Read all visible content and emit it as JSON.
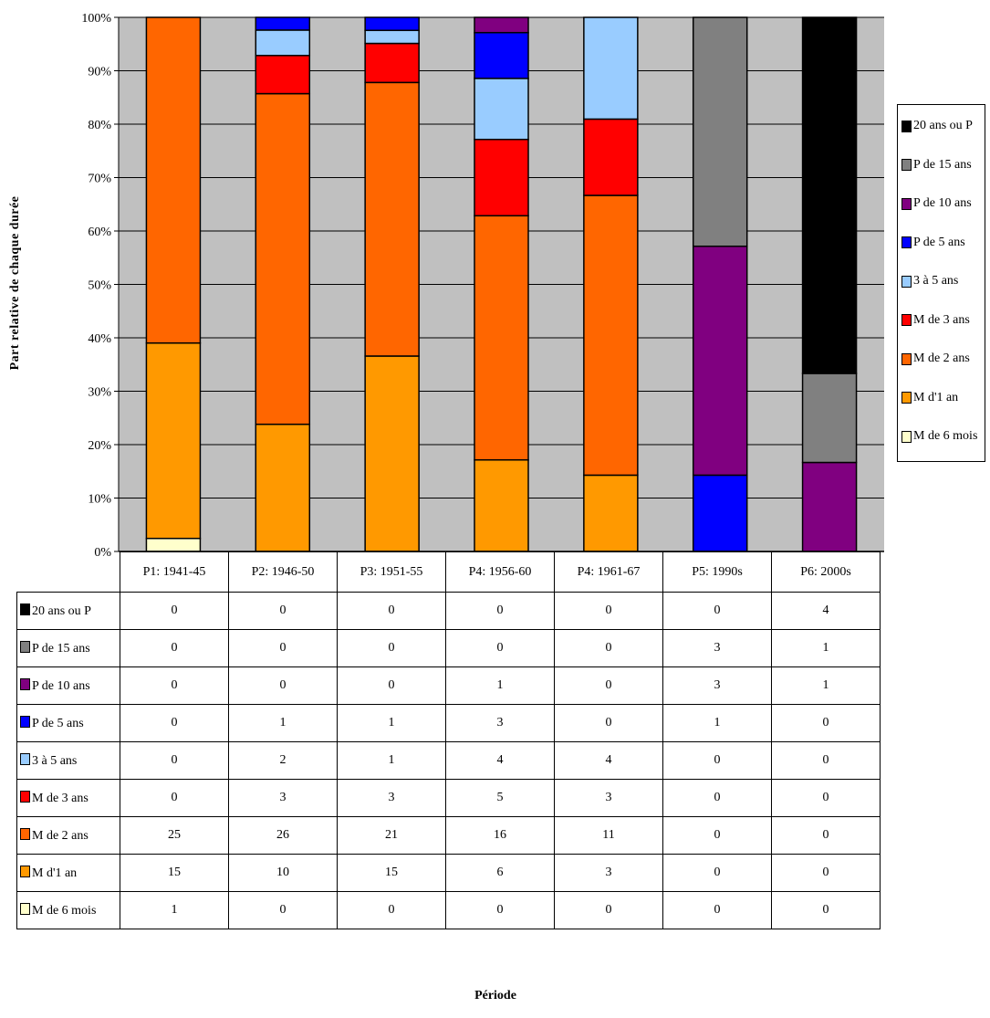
{
  "chart_data": {
    "type": "bar",
    "stacked": true,
    "normalized": true,
    "title": "",
    "xlabel": "Période",
    "ylabel": "Part relative de chaque durée",
    "ylim": [
      0,
      100
    ],
    "yticks": [
      "0%",
      "10%",
      "20%",
      "30%",
      "40%",
      "50%",
      "60%",
      "70%",
      "80%",
      "90%",
      "100%"
    ],
    "grid": true,
    "legend_position": "right",
    "categories": [
      "P1: 1941-45",
      "P2: 1946-50",
      "P3: 1951-55",
      "P4: 1956-60",
      "P4: 1961-67",
      "P5: 1990s",
      "P6: 2000s"
    ],
    "series": [
      {
        "name": "M de 6 mois",
        "color": "#ffffcc",
        "values": [
          1,
          0,
          0,
          0,
          0,
          0,
          0
        ]
      },
      {
        "name": "M d'1 an",
        "color": "#ff9900",
        "values": [
          15,
          10,
          15,
          6,
          3,
          0,
          0
        ]
      },
      {
        "name": "M de 2 ans",
        "color": "#ff6600",
        "values": [
          25,
          26,
          21,
          16,
          11,
          0,
          0
        ]
      },
      {
        "name": "M de 3 ans",
        "color": "#ff0000",
        "values": [
          0,
          3,
          3,
          5,
          3,
          0,
          0
        ]
      },
      {
        "name": "3 à 5 ans",
        "color": "#99ccff",
        "values": [
          0,
          2,
          1,
          4,
          4,
          0,
          0
        ]
      },
      {
        "name": "P de 5 ans",
        "color": "#0000ff",
        "values": [
          0,
          1,
          1,
          3,
          0,
          1,
          0
        ]
      },
      {
        "name": "P de 10 ans",
        "color": "#800080",
        "values": [
          0,
          0,
          0,
          1,
          0,
          3,
          1
        ]
      },
      {
        "name": "P de 15 ans",
        "color": "#808080",
        "values": [
          0,
          0,
          0,
          0,
          0,
          3,
          1
        ]
      },
      {
        "name": "20 ans ou P",
        "color": "#000000",
        "values": [
          0,
          0,
          0,
          0,
          0,
          0,
          4
        ]
      }
    ],
    "plot_background": "#c0c0c0"
  }
}
